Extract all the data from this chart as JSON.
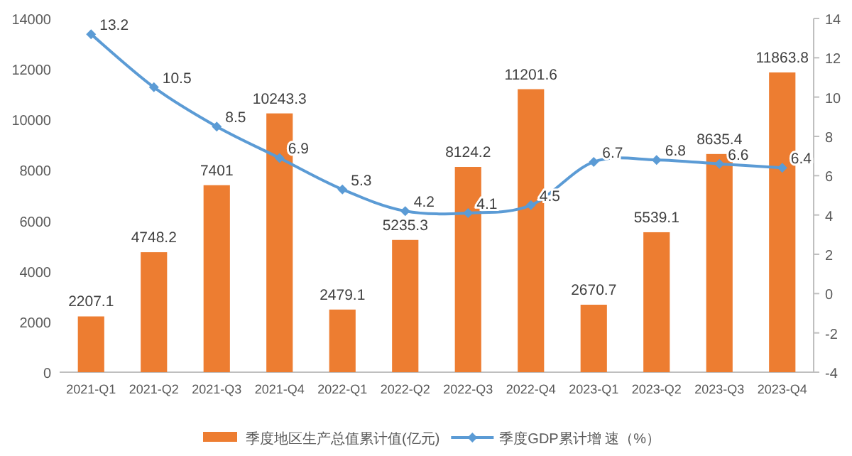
{
  "chart_data": {
    "type": "bar",
    "categories": [
      "2021-Q1",
      "2021-Q2",
      "2021-Q3",
      "2021-Q4",
      "2022-Q1",
      "2022-Q2",
      "2022-Q3",
      "2022-Q4",
      "2023-Q1",
      "2023-Q2",
      "2023-Q3",
      "2023-Q4"
    ],
    "series": [
      {
        "name": "季度地区生产总值累计值(亿元)",
        "color": "#ed7d31",
        "type": "bar",
        "values": [
          2207.1,
          4748.2,
          7401,
          10243.3,
          2479.1,
          5235.3,
          8124.2,
          11201.6,
          2670.7,
          5539.1,
          8635.4,
          11863.8
        ]
      },
      {
        "name": "季度GDP累计增 速（%）",
        "color": "#5b9bd5",
        "type": "line",
        "axis": "y2",
        "marker": "diamond",
        "values": [
          13.2,
          10.5,
          8.5,
          6.9,
          5.3,
          4.2,
          4.1,
          4.5,
          6.7,
          6.8,
          6.6,
          6.4
        ]
      }
    ],
    "ylim": [
      0,
      14000
    ],
    "yticks": [
      0,
      2000,
      4000,
      6000,
      8000,
      10000,
      12000,
      14000
    ],
    "y2lim": [
      -4,
      14
    ],
    "y2ticks": [
      -4,
      -2,
      0,
      2,
      4,
      6,
      8,
      10,
      12,
      14
    ],
    "data_labels": true,
    "legend": "bottom",
    "grid": false
  }
}
